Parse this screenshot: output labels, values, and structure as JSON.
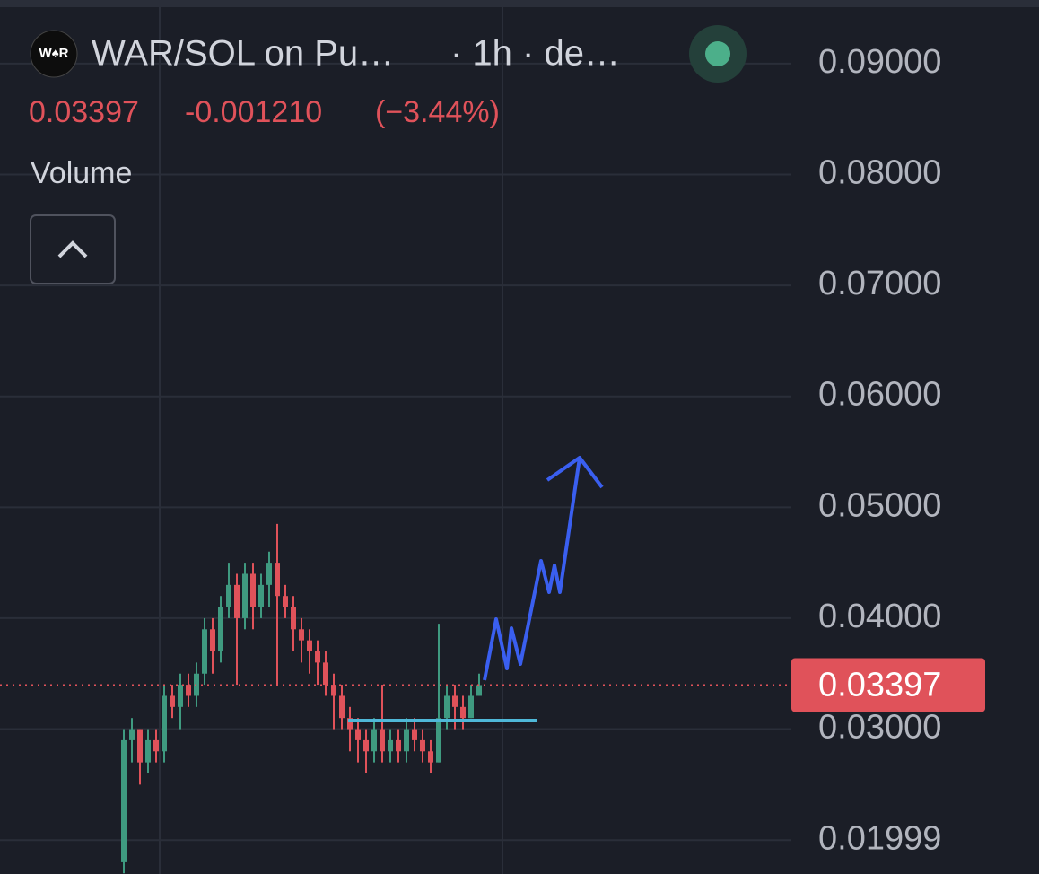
{
  "header": {
    "pair": "WAR/SOL on Pu…",
    "interval": "· 1h · de…",
    "change": "-0.001210",
    "change_pct": "(−3.44%)",
    "indicator": "Volume"
  },
  "chart_data": {
    "type": "candlestick",
    "categories": [
      null,
      null,
      null,
      null,
      null,
      null,
      null,
      null,
      null,
      null,
      null,
      null,
      null,
      null,
      null,
      null,
      null,
      null,
      null,
      null,
      null,
      null,
      null,
      null,
      null,
      null,
      null,
      null,
      null,
      null,
      null,
      null,
      null,
      null,
      null,
      null,
      null,
      null,
      null,
      null,
      null,
      null,
      null,
      null,
      null
    ],
    "open": [
      0.018,
      0.029,
      0.03,
      0.027,
      0.029,
      0.028,
      0.033,
      0.032,
      0.034,
      0.033,
      0.035,
      0.039,
      0.037,
      0.041,
      0.043,
      0.04,
      0.044,
      0.041,
      0.043,
      0.045,
      0.042,
      0.041,
      0.039,
      0.038,
      0.037,
      0.036,
      0.034,
      0.033,
      0.031,
      0.03,
      0.029,
      0.028,
      0.03,
      0.028,
      0.029,
      0.028,
      0.03,
      0.029,
      0.028,
      0.027,
      0.031,
      0.033,
      0.032,
      0.031,
      0.033
    ],
    "high": [
      0.03,
      0.031,
      0.03,
      0.03,
      0.03,
      0.034,
      0.034,
      0.035,
      0.035,
      0.036,
      0.04,
      0.04,
      0.042,
      0.045,
      0.044,
      0.045,
      0.045,
      0.044,
      0.046,
      0.0485,
      0.043,
      0.042,
      0.04,
      0.039,
      0.038,
      0.037,
      0.035,
      0.034,
      0.032,
      0.031,
      0.03,
      0.031,
      0.034,
      0.03,
      0.03,
      0.031,
      0.031,
      0.03,
      0.029,
      0.0395,
      0.034,
      0.034,
      0.033,
      0.034,
      0.035
    ],
    "low": [
      0.017,
      0.027,
      0.025,
      0.026,
      0.027,
      0.027,
      0.031,
      0.03,
      0.032,
      0.032,
      0.034,
      0.035,
      0.036,
      0.04,
      0.034,
      0.039,
      0.039,
      0.04,
      0.041,
      0.034,
      0.04,
      0.037,
      0.036,
      0.035,
      0.034,
      0.033,
      0.03,
      0.03,
      0.028,
      0.027,
      0.026,
      0.027,
      0.027,
      0.027,
      0.027,
      0.027,
      0.028,
      0.027,
      0.026,
      0.027,
      0.03,
      0.03,
      0.03,
      0.031,
      0.033
    ],
    "close": [
      0.029,
      0.03,
      0.027,
      0.029,
      0.028,
      0.033,
      0.032,
      0.034,
      0.033,
      0.035,
      0.039,
      0.037,
      0.041,
      0.043,
      0.04,
      0.044,
      0.041,
      0.043,
      0.045,
      0.042,
      0.041,
      0.039,
      0.038,
      0.037,
      0.036,
      0.034,
      0.033,
      0.031,
      0.03,
      0.029,
      0.028,
      0.03,
      0.028,
      0.029,
      0.028,
      0.03,
      0.029,
      0.028,
      0.027,
      0.031,
      0.033,
      0.032,
      0.031,
      0.033,
      0.03397
    ],
    "up_color": "#3f9a80",
    "down_color": "#e0525a",
    "last_price": 0.03397,
    "ylim": [
      0.01694,
      0.09573
    ],
    "yticks": [
      {
        "value": 0.09,
        "label": "0.09000"
      },
      {
        "value": 0.08,
        "label": "0.08000"
      },
      {
        "value": 0.07,
        "label": "0.07000"
      },
      {
        "value": 0.06,
        "label": "0.06000"
      },
      {
        "value": 0.05,
        "label": "0.05000"
      },
      {
        "value": 0.04,
        "label": "0.04000"
      },
      {
        "value": 0.03,
        "label": "0.03000"
      },
      {
        "value": 0.01999,
        "label": "0.01999"
      }
    ],
    "grid": true
  }
}
